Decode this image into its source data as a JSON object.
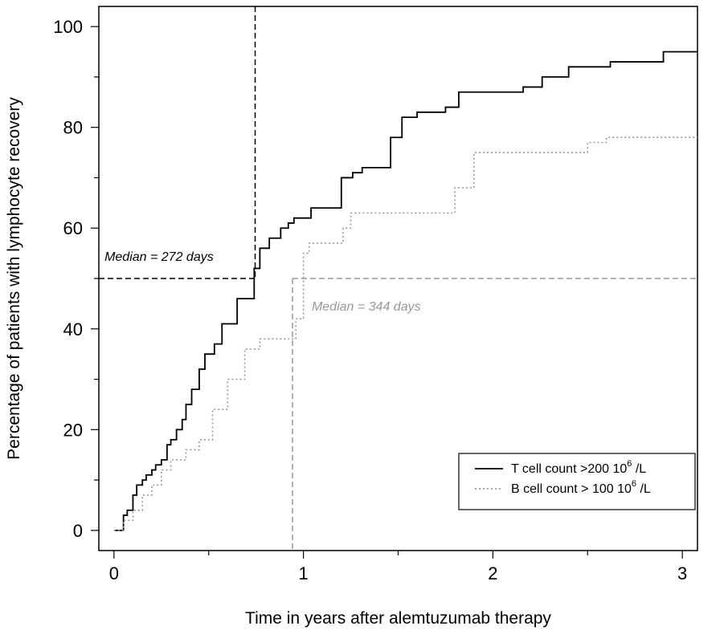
{
  "chart_data": {
    "type": "line",
    "xlabel": "Time in years after alemtuzumab therapy",
    "ylabel": "Percentage of patients with lymphocyte recovery",
    "xlim": [
      -0.08,
      3.08
    ],
    "ylim": [
      -4,
      104
    ],
    "x_ticks": [
      0,
      1,
      2,
      3
    ],
    "x_minor_ticks": [
      0.5,
      1.5,
      2.5
    ],
    "y_ticks": [
      0,
      20,
      40,
      60,
      80,
      100
    ],
    "y_minor_ticks": [
      10,
      30,
      50,
      70,
      90
    ],
    "grid": false,
    "legend_position": "bottom-right",
    "series": [
      {
        "name": "T cell count >200 10",
        "name_sup": "6",
        "name_suffix": " /L",
        "style": "solid",
        "color": "#000000",
        "step": true,
        "x": [
          0,
          0.05,
          0.07,
          0.1,
          0.12,
          0.15,
          0.17,
          0.2,
          0.22,
          0.25,
          0.28,
          0.3,
          0.33,
          0.36,
          0.38,
          0.41,
          0.45,
          0.48,
          0.53,
          0.57,
          0.65,
          0.74,
          0.77,
          0.82,
          0.88,
          0.92,
          0.95,
          1.04,
          1.2,
          1.26,
          1.31,
          1.46,
          1.52,
          1.6,
          1.75,
          1.82,
          2.16,
          2.26,
          2.4,
          2.62,
          2.9,
          3.08
        ],
        "y": [
          0,
          3,
          4,
          7,
          9,
          10,
          11,
          12,
          13,
          14,
          17,
          18,
          20,
          22,
          25,
          28,
          32,
          35,
          37,
          41,
          46,
          52,
          56,
          58,
          60,
          61,
          62,
          64,
          70,
          71,
          72,
          78,
          82,
          83,
          84,
          87,
          88,
          90,
          92,
          93,
          95,
          95
        ]
      },
      {
        "name": "B cell count > 100 10",
        "name_sup": "6",
        "name_suffix": " /L",
        "style": "dotted",
        "color": "#999999",
        "step": true,
        "x": [
          0,
          0.05,
          0.1,
          0.15,
          0.2,
          0.25,
          0.3,
          0.38,
          0.45,
          0.52,
          0.6,
          0.69,
          0.77,
          0.96,
          1.0,
          1.03,
          1.21,
          1.25,
          1.5,
          1.8,
          1.9,
          2.5,
          2.6,
          3.08
        ],
        "y": [
          0,
          2,
          4,
          7,
          9,
          12,
          14,
          16,
          18,
          24,
          30,
          36,
          38,
          42,
          55,
          57,
          60,
          63,
          63,
          68,
          75,
          77,
          78,
          78
        ]
      }
    ],
    "annotations": [
      {
        "text": "Median = 272 days",
        "color": "#000000",
        "median_x": 0.745,
        "median_y": 50,
        "line_color": "#000000"
      },
      {
        "text": "Median = 344 days",
        "color": "#999999",
        "median_x": 0.942,
        "median_y": 50,
        "line_color": "#999999"
      }
    ]
  }
}
